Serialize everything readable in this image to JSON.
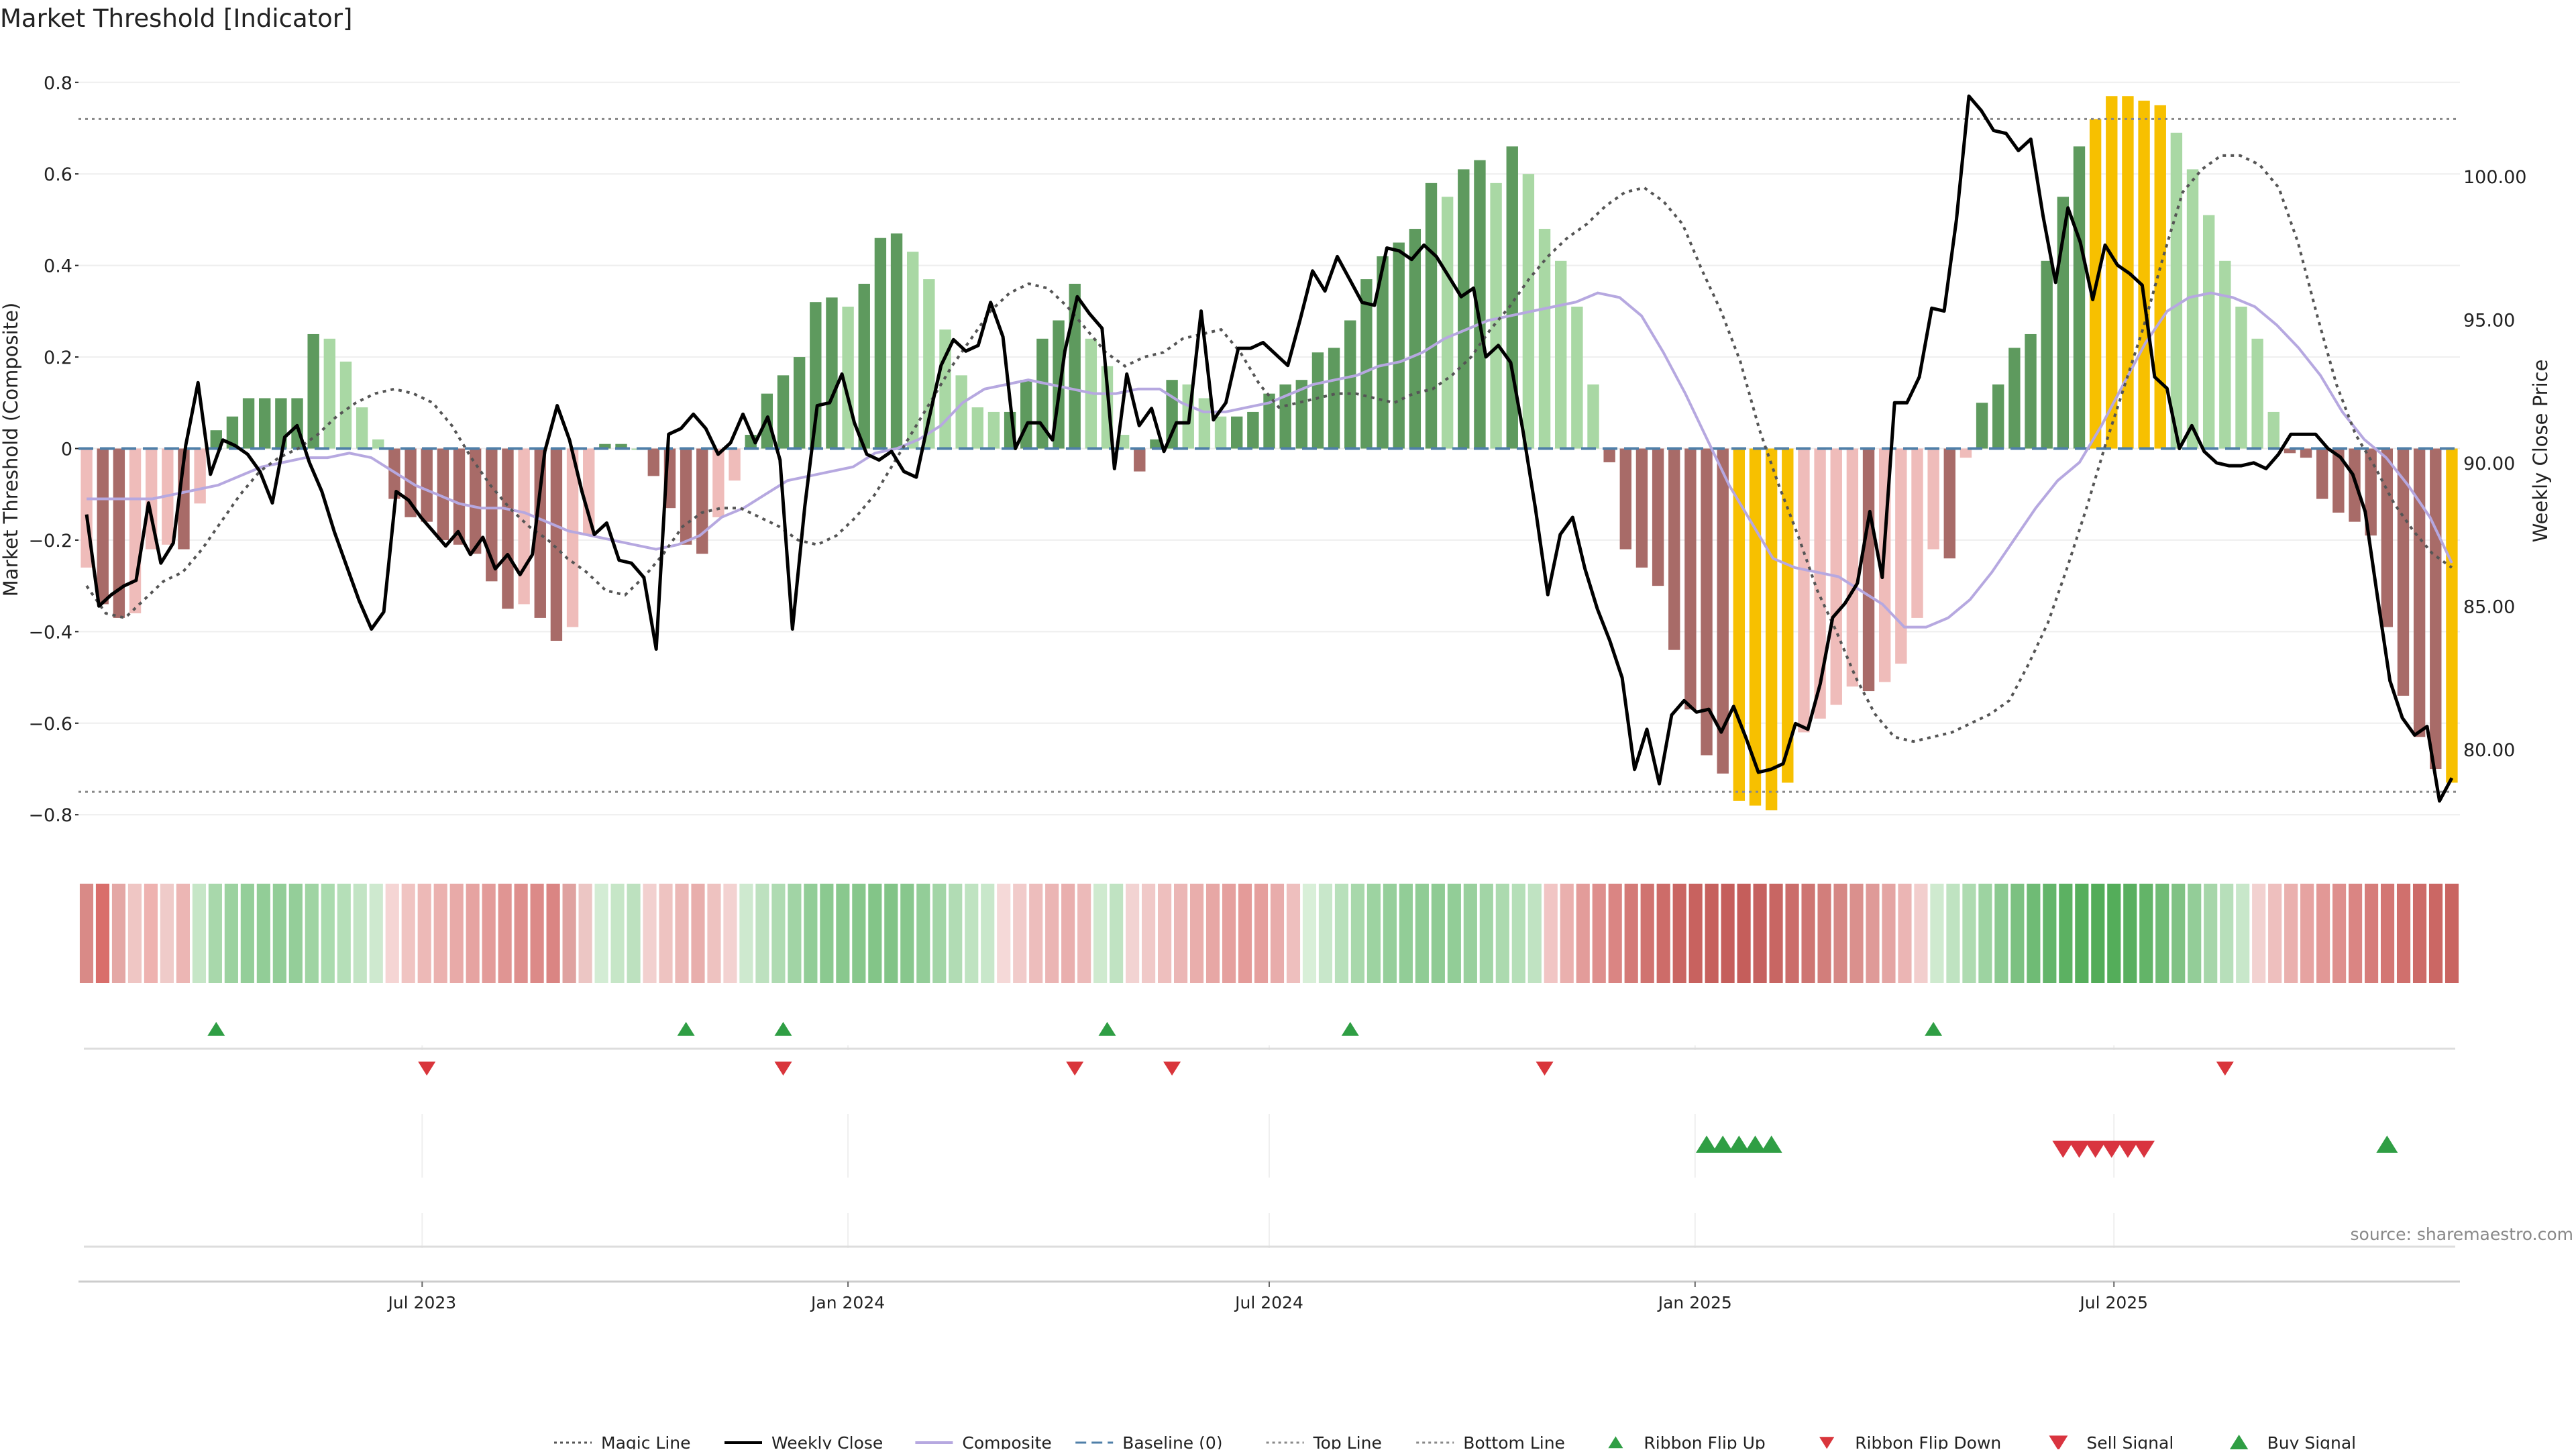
{
  "title": "Market Threshold [Indicator]",
  "source": "source: sharemaestro.com",
  "colors": {
    "bar_strong_pos": "#5e9a5e",
    "bar_weak_pos": "#a9d8a4",
    "bar_strong_neg": "#a86b68",
    "bar_weak_neg": "#efbcba",
    "bar_extreme": "#f7c000",
    "weekly_close": "#000000",
    "magic_line": "#555555",
    "composite": "#b6a8e0",
    "baseline": "#4f7fa8",
    "threshold": "#888888",
    "flip_up": "#2f9e44",
    "flip_down": "#d9353b",
    "sell": "#d9343f",
    "buy": "#2f9e44"
  },
  "chart_data": {
    "type": "bar",
    "x_start": "2023-02-06",
    "x_step_days": 7,
    "x_ticks": [
      "Jul 2023",
      "Jan 2024",
      "Jul 2024",
      "Jan 2025",
      "Jul 2025"
    ],
    "x_tick_dates": [
      "2023-07-01",
      "2024-01-01",
      "2024-07-01",
      "2025-01-01",
      "2025-07-01"
    ],
    "left_axis": {
      "label": "Market Threshold (Composite)",
      "ylim": [
        -0.87,
        0.87
      ],
      "ticks": [
        0.8,
        0.6,
        0.4,
        0.2,
        0,
        -0.2,
        -0.4,
        -0.6,
        -0.8
      ],
      "tick_labels": [
        "0.8",
        "0.6",
        "0.4",
        "0.2",
        "0",
        "−0.2",
        "−0.4",
        "−0.6",
        "−0.8"
      ]
    },
    "right_axis": {
      "label": "Weekly Close Price",
      "ylim": [
        76.6,
        104.4
      ],
      "ticks": [
        100,
        95,
        90,
        85,
        80
      ],
      "tick_labels": [
        "100.00",
        "95.00",
        "90.00",
        "85.00",
        "80.00"
      ]
    },
    "top_line": 0.72,
    "bottom_line": -0.75,
    "baseline": 0,
    "bars": [
      -0.26,
      -0.34,
      -0.37,
      -0.36,
      -0.22,
      -0.21,
      -0.22,
      -0.12,
      0.04,
      0.07,
      0.11,
      0.11,
      0.11,
      0.11,
      0.25,
      0.24,
      0.19,
      0.09,
      0.02,
      -0.11,
      -0.15,
      -0.16,
      -0.2,
      -0.21,
      -0.23,
      -0.29,
      -0.35,
      -0.34,
      -0.37,
      -0.42,
      -0.39,
      -0.19,
      0.01,
      0.01,
      0.0,
      -0.06,
      -0.13,
      -0.21,
      -0.23,
      -0.15,
      -0.07,
      0.03,
      0.12,
      0.16,
      0.2,
      0.32,
      0.33,
      0.31,
      0.36,
      0.46,
      0.47,
      0.43,
      0.37,
      0.26,
      0.16,
      0.09,
      0.08,
      0.08,
      0.15,
      0.24,
      0.28,
      0.36,
      0.24,
      0.18,
      0.03,
      -0.05,
      0.02,
      0.15,
      0.14,
      0.11,
      0.07,
      0.07,
      0.08,
      0.12,
      0.14,
      0.15,
      0.21,
      0.22,
      0.28,
      0.37,
      0.42,
      0.45,
      0.48,
      0.58,
      0.55,
      0.61,
      0.63,
      0.58,
      0.66,
      0.6,
      0.48,
      0.41,
      0.31,
      0.14,
      -0.03,
      -0.22,
      -0.26,
      -0.3,
      -0.44,
      -0.57,
      -0.67,
      -0.71,
      -0.77,
      -0.78,
      -0.79,
      -0.73,
      -0.62,
      -0.59,
      -0.56,
      -0.52,
      -0.53,
      -0.51,
      -0.47,
      -0.37,
      -0.22,
      -0.24,
      -0.02,
      0.1,
      0.14,
      0.22,
      0.25,
      0.41,
      0.55,
      0.66,
      0.72,
      0.77,
      0.77,
      0.76,
      0.75,
      0.69,
      0.61,
      0.51,
      0.41,
      0.31,
      0.24,
      0.08,
      -0.01,
      -0.02,
      -0.11,
      -0.14,
      -0.16,
      -0.19,
      -0.39,
      -0.54,
      -0.63,
      -0.7,
      -0.73
    ],
    "weekly_close": [
      88.2,
      85.0,
      85.4,
      85.7,
      85.9,
      88.6,
      86.5,
      87.2,
      90.6,
      92.8,
      89.6,
      90.8,
      90.6,
      90.3,
      89.7,
      88.6,
      90.9,
      91.3,
      90.0,
      89.0,
      87.6,
      86.4,
      85.2,
      84.2,
      84.8,
      89.0,
      88.7,
      88.1,
      87.6,
      87.1,
      87.6,
      86.8,
      87.4,
      86.3,
      86.8,
      86.1,
      86.8,
      90.4,
      92.0,
      90.8,
      89.0,
      87.5,
      87.9,
      86.6,
      86.5,
      86.0,
      83.5,
      91.0,
      91.2,
      91.7,
      91.2,
      90.3,
      90.7,
      91.7,
      90.7,
      91.6,
      90.1,
      84.2,
      88.5,
      92.0,
      92.1,
      93.1,
      91.4,
      90.3,
      90.1,
      90.4,
      89.7,
      89.5,
      91.5,
      93.4,
      94.3,
      93.9,
      94.1,
      95.6,
      94.4,
      90.5,
      91.4,
      91.4,
      90.8,
      93.9,
      95.8,
      95.2,
      94.7,
      89.8,
      93.1,
      91.3,
      91.9,
      90.4,
      91.4,
      91.4,
      95.3,
      91.5,
      92.1,
      94.0,
      94.0,
      94.2,
      93.8,
      93.4,
      95.0,
      96.7,
      96.0,
      97.2,
      96.4,
      95.6,
      95.5,
      97.5,
      97.4,
      97.1,
      97.6,
      97.2,
      96.5,
      95.8,
      96.1,
      93.7,
      94.1,
      93.5,
      91.1,
      88.4,
      85.4,
      87.5,
      88.1,
      86.3,
      84.9,
      83.8,
      82.5,
      79.3,
      80.7,
      78.8,
      81.2,
      81.7,
      81.3,
      81.4,
      80.6,
      81.5,
      80.4,
      79.2,
      79.3,
      79.5,
      80.9,
      80.7,
      82.3,
      84.6,
      85.1,
      85.8,
      88.3,
      86.0,
      92.1,
      92.1,
      93.0,
      95.4,
      95.3,
      98.5,
      102.8,
      102.3,
      101.6,
      101.5,
      100.9,
      101.3,
      98.6,
      96.3,
      98.9,
      97.7,
      95.7,
      97.6,
      96.9,
      96.6,
      96.2,
      93.0,
      92.6,
      90.5,
      91.3,
      90.4,
      90.0,
      89.9,
      89.9,
      90.0,
      89.8,
      90.3,
      91.0,
      91.0,
      91.0,
      90.5,
      90.2,
      89.6,
      88.3,
      85.3,
      82.4,
      81.1,
      80.5,
      80.8,
      78.2,
      79.0
    ],
    "magic_line": [
      -0.3,
      -0.36,
      -0.37,
      -0.33,
      -0.29,
      -0.27,
      -0.22,
      -0.16,
      -0.1,
      -0.05,
      -0.02,
      0.0,
      0.03,
      0.07,
      0.1,
      0.12,
      0.13,
      0.12,
      0.1,
      0.05,
      -0.02,
      -0.08,
      -0.13,
      -0.17,
      -0.2,
      -0.24,
      -0.27,
      -0.31,
      -0.32,
      -0.28,
      -0.23,
      -0.17,
      -0.14,
      -0.13,
      -0.13,
      -0.15,
      -0.17,
      -0.2,
      -0.21,
      -0.19,
      -0.15,
      -0.1,
      -0.03,
      0.04,
      0.11,
      0.18,
      0.24,
      0.3,
      0.34,
      0.36,
      0.35,
      0.31,
      0.26,
      0.21,
      0.18,
      0.2,
      0.21,
      0.24,
      0.25,
      0.26,
      0.21,
      0.14,
      0.09,
      0.1,
      0.11,
      0.12,
      0.12,
      0.11,
      0.1,
      0.12,
      0.13,
      0.16,
      0.2,
      0.26,
      0.31,
      0.37,
      0.42,
      0.46,
      0.49,
      0.53,
      0.56,
      0.57,
      0.54,
      0.49,
      0.39,
      0.3,
      0.19,
      0.04,
      -0.08,
      -0.19,
      -0.31,
      -0.4,
      -0.5,
      -0.58,
      -0.63,
      -0.64,
      -0.63,
      -0.62,
      -0.6,
      -0.58,
      -0.55,
      -0.47,
      -0.38,
      -0.26,
      -0.13,
      0.01,
      0.14,
      0.27,
      0.42,
      0.56,
      0.61,
      0.64,
      0.64,
      0.62,
      0.57,
      0.45,
      0.29,
      0.14,
      0.03,
      -0.04,
      -0.12,
      -0.18,
      -0.23,
      -0.26
    ],
    "composite": [
      -0.11,
      -0.11,
      -0.11,
      -0.11,
      -0.1,
      -0.09,
      -0.08,
      -0.06,
      -0.04,
      -0.03,
      -0.02,
      -0.02,
      -0.01,
      -0.02,
      -0.05,
      -0.08,
      -0.1,
      -0.12,
      -0.13,
      -0.13,
      -0.14,
      -0.16,
      -0.18,
      -0.19,
      -0.2,
      -0.21,
      -0.22,
      -0.21,
      -0.19,
      -0.15,
      -0.13,
      -0.1,
      -0.07,
      -0.06,
      -0.05,
      -0.04,
      -0.01,
      0.0,
      0.02,
      0.05,
      0.1,
      0.13,
      0.14,
      0.15,
      0.14,
      0.13,
      0.12,
      0.12,
      0.13,
      0.13,
      0.1,
      0.08,
      0.08,
      0.09,
      0.1,
      0.12,
      0.14,
      0.15,
      0.16,
      0.18,
      0.19,
      0.21,
      0.24,
      0.26,
      0.28,
      0.29,
      0.3,
      0.31,
      0.32,
      0.34,
      0.33,
      0.29,
      0.21,
      0.12,
      0.02,
      -0.08,
      -0.16,
      -0.24,
      -0.26,
      -0.27,
      -0.28,
      -0.31,
      -0.34,
      -0.39,
      -0.39,
      -0.37,
      -0.33,
      -0.27,
      -0.2,
      -0.13,
      -0.07,
      -0.03,
      0.05,
      0.14,
      0.23,
      0.3,
      0.33,
      0.34,
      0.33,
      0.31,
      0.27,
      0.22,
      0.16,
      0.08,
      0.02,
      -0.02,
      -0.08,
      -0.15,
      -0.25
    ]
  },
  "ribbon": {
    "colors": [
      "#d98a87",
      "#d96e6b",
      "#e4a7a5",
      "#efc6c4",
      "#eeb2b0",
      "#efcbc9",
      "#ecb6b4",
      "#c6e6c7",
      "#a8d8ab",
      "#9cd2a0",
      "#94ce99",
      "#92cd97",
      "#92cd97",
      "#94ce99",
      "#9fd4a3",
      "#aadbae",
      "#b5dfb8",
      "#c2e4c4",
      "#cee9cf",
      "#f5d5d4",
      "#f0c4c2",
      "#edb9b7",
      "#ebb1af",
      "#e8aaa8",
      "#e6a3a1",
      "#e39c9a",
      "#e09593",
      "#de8f8d",
      "#dc8a88",
      "#da8583",
      "#dfa2a0",
      "#ecc6c4",
      "#d3ecd4",
      "#c6e6c7",
      "#bde1bf",
      "#f2d0cf",
      "#eec3c1",
      "#ebb8b6",
      "#e8aeac",
      "#eec2c0",
      "#f3d2d1",
      "#cee9cf",
      "#bde1bf",
      "#afdbb2",
      "#a1d4a5",
      "#92cd97",
      "#8bc990",
      "#89c88e",
      "#87c78c",
      "#83c588",
      "#82c487",
      "#88c78d",
      "#93cd98",
      "#a2d5a6",
      "#b1dcb4",
      "#bfe3c1",
      "#c8e7ca",
      "#f5d9d8",
      "#f1cbca",
      "#edbdbc",
      "#ebb5b4",
      "#e9afae",
      "#ecbab9",
      "#cfeacf",
      "#c0e3c2",
      "#f2d3d2",
      "#f0c9c8",
      "#eebfbe",
      "#ebb6b5",
      "#e9aeac",
      "#e7a7a5",
      "#e5a09e",
      "#e49b99",
      "#e59f9d",
      "#e8acab",
      "#eebfbe",
      "#d8efd8",
      "#c8e7ca",
      "#b8e0bb",
      "#a8d8ab",
      "#9dd3a1",
      "#96cf9b",
      "#92cd97",
      "#90cc95",
      "#8fcb94",
      "#92cd97",
      "#99d09d",
      "#a2d5a6",
      "#acdaaf",
      "#b5dfb8",
      "#c0e3c2",
      "#f1c5c4",
      "#eab0ae",
      "#e39c9a",
      "#de8f8d",
      "#da8583",
      "#d47a77",
      "#d07370",
      "#cd6c69",
      "#ca6663",
      "#c8625f",
      "#c6605d",
      "#c55e5b",
      "#c55e5b",
      "#c66260",
      "#c86663",
      "#cb6d6a",
      "#ce7572",
      "#d27e7b",
      "#d68784",
      "#da908d",
      "#df9a98",
      "#e4a5a3",
      "#ebb5b4",
      "#f2cecd",
      "#cfeacf",
      "#bfe3c1",
      "#aedbb1",
      "#9dd3a1",
      "#8bc990",
      "#7cc181",
      "#6fbb75",
      "#64b56a",
      "#5cb162",
      "#56ae5c",
      "#53ac59",
      "#54ad5a",
      "#59af5f",
      "#63b468",
      "#70bb75",
      "#80c284",
      "#93cd98",
      "#a6d6a9",
      "#b7dfba",
      "#c8e7ca",
      "#f2d1d0",
      "#eebfbe",
      "#eab0ae",
      "#e6a3a1",
      "#e29896",
      "#de8f8d",
      "#da8583",
      "#d67d7a",
      "#d37673",
      "#d0706d",
      "#cd6b68",
      "#cb6764",
      "#c96461"
    ]
  },
  "signals": {
    "ribbon_flip_up": [
      "2023-04-03",
      "2023-10-23",
      "2023-12-04",
      "2024-04-22",
      "2024-08-05",
      "2025-04-14"
    ],
    "ribbon_flip_down": [
      "2023-07-03",
      "2023-12-04",
      "2024-04-08",
      "2024-05-20",
      "2024-10-28",
      "2025-08-18"
    ],
    "buy_signal": [
      "2025-01-06",
      "2025-01-13",
      "2025-01-20",
      "2025-01-27",
      "2025-02-03",
      "2025-10-27"
    ],
    "sell_signal": [
      "2025-06-09",
      "2025-06-16",
      "2025-06-23",
      "2025-06-30",
      "2025-07-07",
      "2025-07-14"
    ]
  },
  "legend": [
    {
      "label": "Magic Line",
      "kind": "dotted",
      "color": "#555555"
    },
    {
      "label": "Weekly Close",
      "kind": "solid",
      "color": "#000000"
    },
    {
      "label": "Composite",
      "kind": "solid",
      "color": "#b6a8e0"
    },
    {
      "label": "Baseline (0)",
      "kind": "dashed",
      "color": "#4f7fa8"
    },
    {
      "label": "Top Line",
      "kind": "dotted",
      "color": "#888888"
    },
    {
      "label": "Bottom Line",
      "kind": "dotted",
      "color": "#888888"
    },
    {
      "label": "Ribbon Flip Up",
      "kind": "tri-up-small",
      "color": "#2f9e44"
    },
    {
      "label": "Ribbon Flip Down",
      "kind": "tri-down-small",
      "color": "#d9353b"
    },
    {
      "label": "Sell Signal",
      "kind": "tri-down",
      "color": "#d9343f"
    },
    {
      "label": "Buy Signal",
      "kind": "tri-up",
      "color": "#2f9e44"
    }
  ]
}
